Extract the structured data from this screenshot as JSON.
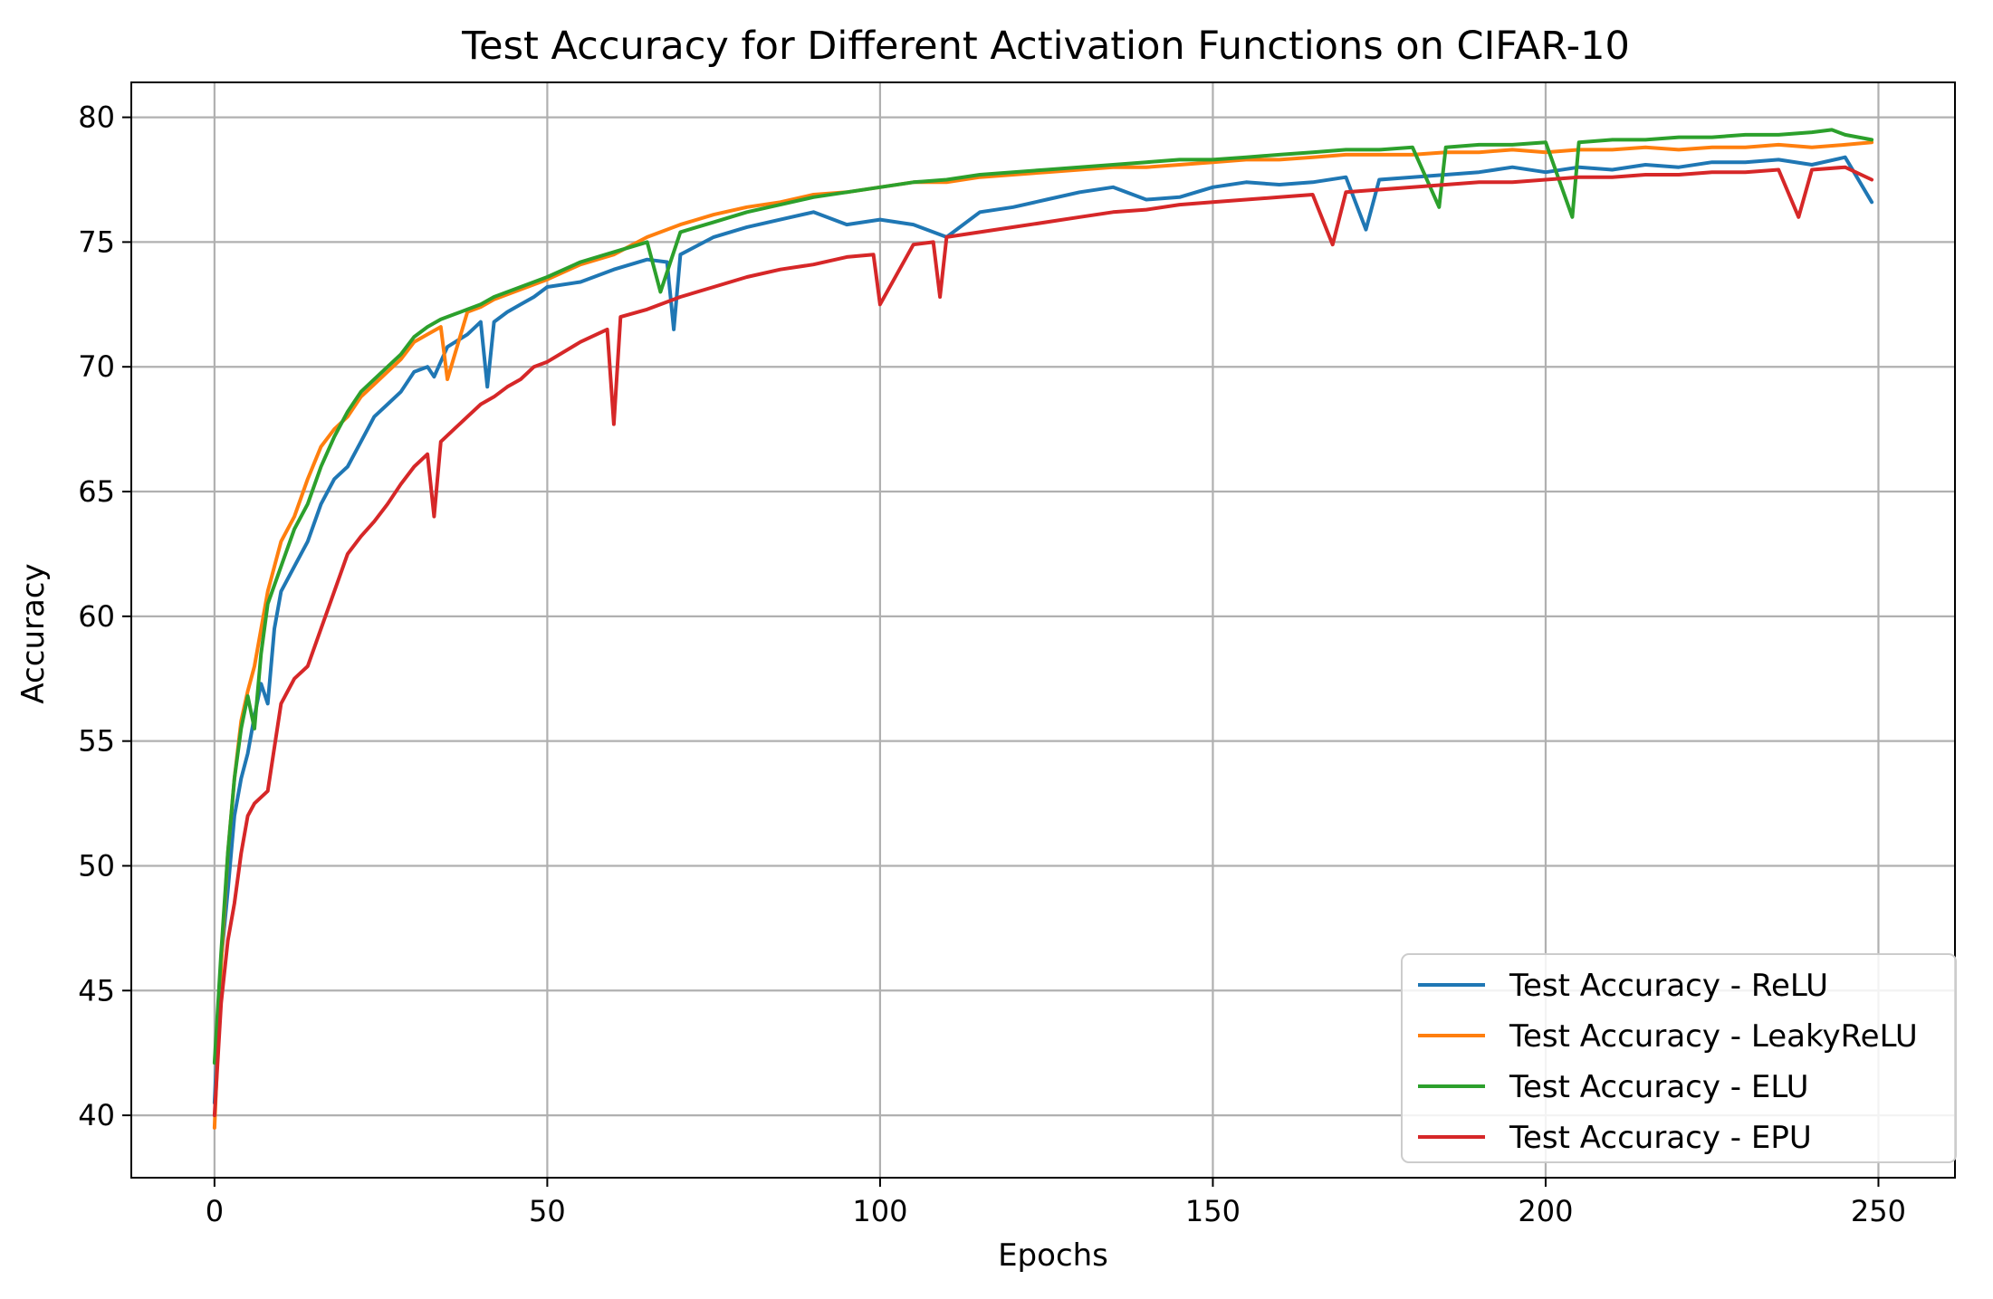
{
  "chart_data": {
    "type": "line",
    "title": "Test Accuracy for Different Activation Functions on CIFAR-10",
    "xlabel": "Epochs",
    "ylabel": "Accuracy",
    "xlim": [
      -12.5,
      261.5
    ],
    "ylim": [
      37.5,
      81.4
    ],
    "grid": true,
    "legend_position": "lower-right",
    "x_ticks": [
      0,
      50,
      100,
      150,
      200,
      250
    ],
    "y_ticks": [
      40,
      45,
      50,
      55,
      60,
      65,
      70,
      75,
      80
    ],
    "x_tick_labels": [
      "0",
      "50",
      "100",
      "150",
      "200",
      "250"
    ],
    "y_tick_labels": [
      "40",
      "45",
      "50",
      "55",
      "60",
      "65",
      "70",
      "75",
      "80"
    ],
    "series": [
      {
        "name": "Test Accuracy - ReLU",
        "color": "#1f77b4",
        "x": [
          0,
          1,
          2,
          3,
          4,
          5,
          6,
          7,
          8,
          9,
          10,
          12,
          14,
          16,
          18,
          20,
          22,
          24,
          26,
          28,
          30,
          32,
          33,
          35,
          38,
          40,
          41,
          42,
          44,
          46,
          48,
          50,
          55,
          60,
          65,
          68,
          69,
          70,
          75,
          80,
          85,
          90,
          95,
          100,
          105,
          110,
          115,
          120,
          125,
          130,
          135,
          140,
          145,
          150,
          155,
          160,
          165,
          170,
          173,
          175,
          180,
          185,
          190,
          195,
          200,
          205,
          210,
          215,
          220,
          225,
          230,
          235,
          240,
          245,
          249
        ],
        "values": [
          40.5,
          46.2,
          49.0,
          52.0,
          53.5,
          54.5,
          56.0,
          57.3,
          56.5,
          59.5,
          61.0,
          62.0,
          63.0,
          64.5,
          65.5,
          66.0,
          67.0,
          68.0,
          68.5,
          69.0,
          69.8,
          70.0,
          69.6,
          70.8,
          71.3,
          71.8,
          69.2,
          71.8,
          72.2,
          72.5,
          72.8,
          73.2,
          73.4,
          73.9,
          74.3,
          74.2,
          71.5,
          74.5,
          75.2,
          75.6,
          75.9,
          76.2,
          75.7,
          75.9,
          75.7,
          75.2,
          76.2,
          76.4,
          76.7,
          77.0,
          77.2,
          76.7,
          76.8,
          77.2,
          77.4,
          77.3,
          77.4,
          77.6,
          75.5,
          77.5,
          77.6,
          77.7,
          77.8,
          78.0,
          77.8,
          78.0,
          77.9,
          78.1,
          78.0,
          78.2,
          78.2,
          78.3,
          78.1,
          78.4,
          76.6
        ]
      },
      {
        "name": "Test Accuracy - LeakyReLU",
        "color": "#ff7f0e",
        "x": [
          0,
          1,
          2,
          3,
          4,
          5,
          6,
          8,
          10,
          12,
          14,
          16,
          18,
          20,
          22,
          24,
          26,
          28,
          30,
          32,
          34,
          35,
          38,
          40,
          42,
          44,
          46,
          48,
          50,
          55,
          60,
          65,
          70,
          75,
          80,
          85,
          90,
          95,
          100,
          105,
          110,
          115,
          120,
          125,
          130,
          135,
          140,
          145,
          150,
          155,
          160,
          165,
          170,
          175,
          180,
          185,
          190,
          195,
          200,
          205,
          210,
          215,
          220,
          225,
          230,
          235,
          240,
          245,
          249
        ],
        "values": [
          39.5,
          46.0,
          50.5,
          53.5,
          55.8,
          57.0,
          58.0,
          61.0,
          63.0,
          64.0,
          65.5,
          66.8,
          67.5,
          68.0,
          68.8,
          69.3,
          69.8,
          70.3,
          71.0,
          71.3,
          71.6,
          69.5,
          72.2,
          72.4,
          72.7,
          72.9,
          73.1,
          73.3,
          73.5,
          74.1,
          74.5,
          75.2,
          75.7,
          76.1,
          76.4,
          76.6,
          76.9,
          77.0,
          77.2,
          77.4,
          77.4,
          77.6,
          77.7,
          77.8,
          77.9,
          78.0,
          78.0,
          78.1,
          78.2,
          78.3,
          78.3,
          78.4,
          78.5,
          78.5,
          78.5,
          78.6,
          78.6,
          78.7,
          78.6,
          78.7,
          78.7,
          78.8,
          78.7,
          78.8,
          78.8,
          78.9,
          78.8,
          78.9,
          79.0
        ]
      },
      {
        "name": "Test Accuracy - ELU",
        "color": "#2ca02c",
        "x": [
          0,
          1,
          2,
          3,
          4,
          5,
          6,
          7,
          8,
          10,
          12,
          14,
          16,
          18,
          20,
          22,
          24,
          26,
          28,
          30,
          32,
          34,
          36,
          38,
          40,
          42,
          44,
          46,
          48,
          50,
          55,
          60,
          65,
          67,
          70,
          75,
          80,
          85,
          90,
          95,
          100,
          105,
          110,
          115,
          120,
          125,
          130,
          135,
          140,
          145,
          150,
          155,
          160,
          165,
          170,
          175,
          180,
          184,
          185,
          190,
          195,
          200,
          204,
          205,
          210,
          215,
          220,
          225,
          230,
          235,
          240,
          243,
          245,
          249
        ],
        "values": [
          42.1,
          46.5,
          50.5,
          53.5,
          55.5,
          56.8,
          55.5,
          58.5,
          60.5,
          62.0,
          63.5,
          64.5,
          66.0,
          67.2,
          68.2,
          69.0,
          69.5,
          70.0,
          70.5,
          71.2,
          71.6,
          71.9,
          72.1,
          72.3,
          72.5,
          72.8,
          73.0,
          73.2,
          73.4,
          73.6,
          74.2,
          74.6,
          75.0,
          73.0,
          75.4,
          75.8,
          76.2,
          76.5,
          76.8,
          77.0,
          77.2,
          77.4,
          77.5,
          77.7,
          77.8,
          77.9,
          78.0,
          78.1,
          78.2,
          78.3,
          78.3,
          78.4,
          78.5,
          78.6,
          78.7,
          78.7,
          78.8,
          76.4,
          78.8,
          78.9,
          78.9,
          79.0,
          76.0,
          79.0,
          79.1,
          79.1,
          79.2,
          79.2,
          79.3,
          79.3,
          79.4,
          79.5,
          79.3,
          79.1
        ]
      },
      {
        "name": "Test Accuracy - EPU",
        "color": "#d62728",
        "x": [
          0,
          1,
          2,
          3,
          4,
          5,
          6,
          8,
          10,
          12,
          14,
          16,
          18,
          20,
          22,
          24,
          26,
          28,
          30,
          32,
          33,
          34,
          36,
          38,
          40,
          42,
          44,
          46,
          48,
          50,
          55,
          59,
          60,
          61,
          65,
          70,
          75,
          80,
          85,
          90,
          95,
          99,
          100,
          105,
          108,
          109,
          110,
          115,
          120,
          125,
          130,
          135,
          140,
          145,
          150,
          155,
          160,
          165,
          168,
          170,
          175,
          180,
          185,
          190,
          195,
          200,
          205,
          210,
          215,
          220,
          225,
          230,
          235,
          238,
          240,
          245,
          249
        ],
        "values": [
          40.0,
          44.5,
          47.0,
          48.5,
          50.5,
          52.0,
          52.5,
          53.0,
          56.5,
          57.5,
          58.0,
          59.5,
          61.0,
          62.5,
          63.2,
          63.8,
          64.5,
          65.3,
          66.0,
          66.5,
          64.0,
          67.0,
          67.5,
          68.0,
          68.5,
          68.8,
          69.2,
          69.5,
          70.0,
          70.2,
          71.0,
          71.5,
          67.7,
          72.0,
          72.3,
          72.8,
          73.2,
          73.6,
          73.9,
          74.1,
          74.4,
          74.5,
          72.5,
          74.9,
          75.0,
          72.8,
          75.2,
          75.4,
          75.6,
          75.8,
          76.0,
          76.2,
          76.3,
          76.5,
          76.6,
          76.7,
          76.8,
          76.9,
          74.9,
          77.0,
          77.1,
          77.2,
          77.3,
          77.4,
          77.4,
          77.5,
          77.6,
          77.6,
          77.7,
          77.7,
          77.8,
          77.8,
          77.9,
          76.0,
          77.9,
          78.0,
          77.5
        ]
      }
    ]
  }
}
